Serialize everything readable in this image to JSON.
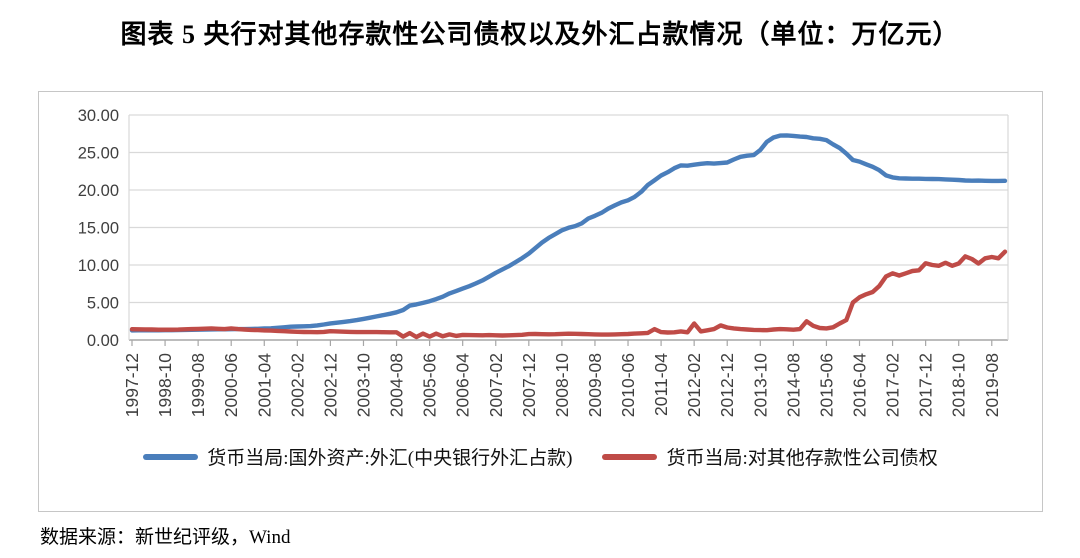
{
  "title": "图表 5  央行对其他存款性公司债权以及外汇占款情况（单位：万亿元）",
  "source": "数据来源：新世纪评级，Wind",
  "colors": {
    "series_blue": "#4a7ebb",
    "series_red": "#bf4b47",
    "gridline": "#d9d9d9",
    "axis_line": "#a6a6a6",
    "plot_border": "#d9d9d9",
    "tick_text": "#3f3f3f",
    "box_border": "#c6c6c6"
  },
  "chart_data": {
    "type": "line",
    "title": "图表 5  央行对其他存款性公司债权以及外汇占款情况（单位：万亿元）",
    "xlabel": "",
    "ylabel": "",
    "ylim": [
      0,
      30
    ],
    "grid": true,
    "legend_position": "bottom",
    "x_unit": "year-month, monthly series sampled every 2 months",
    "x_start": "1997-12",
    "x_end": "2019-12",
    "x_tick_labels": [
      "1997-12",
      "1998-10",
      "1999-08",
      "2000-06",
      "2001-04",
      "2002-02",
      "2002-12",
      "2003-10",
      "2004-08",
      "2005-06",
      "2006-04",
      "2007-02",
      "2007-12",
      "2008-10",
      "2009-08",
      "2010-06",
      "2011-04",
      "2012-02",
      "2012-12",
      "2013-10",
      "2014-08",
      "2015-06",
      "2016-04",
      "2017-02",
      "2017-12",
      "2018-10",
      "2019-08"
    ],
    "x_tick_every_n_points": 5,
    "y_tick_labels": [
      "0.00",
      "5.00",
      "10.00",
      "15.00",
      "20.00",
      "25.00",
      "30.00"
    ],
    "y_tick_values": [
      0,
      5,
      10,
      15,
      20,
      25,
      30
    ],
    "series": [
      {
        "name": "货币当局:国外资产:外汇(中央银行外汇占款)",
        "color": "#4a7ebb",
        "values": [
          1.28,
          1.29,
          1.3,
          1.3,
          1.3,
          1.31,
          1.31,
          1.32,
          1.34,
          1.36,
          1.38,
          1.4,
          1.41,
          1.42,
          1.43,
          1.44,
          1.45,
          1.46,
          1.48,
          1.5,
          1.53,
          1.56,
          1.62,
          1.7,
          1.77,
          1.8,
          1.83,
          1.86,
          1.95,
          2.07,
          2.21,
          2.31,
          2.41,
          2.52,
          2.66,
          2.81,
          2.98,
          3.14,
          3.32,
          3.5,
          3.7,
          4.0,
          4.59,
          4.74,
          4.95,
          5.18,
          5.45,
          5.77,
          6.21,
          6.52,
          6.85,
          7.17,
          7.55,
          7.95,
          8.44,
          8.96,
          9.41,
          9.85,
          10.38,
          10.92,
          11.52,
          12.25,
          12.98,
          13.62,
          14.12,
          14.63,
          14.96,
          15.19,
          15.54,
          16.2,
          16.56,
          16.96,
          17.52,
          17.94,
          18.35,
          18.63,
          19.08,
          19.76,
          20.68,
          21.3,
          21.93,
          22.37,
          22.91,
          23.28,
          23.24,
          23.37,
          23.49,
          23.58,
          23.52,
          23.59,
          23.67,
          24.07,
          24.42,
          24.58,
          24.66,
          25.33,
          26.43,
          27.0,
          27.25,
          27.28,
          27.21,
          27.12,
          27.07,
          26.9,
          26.82,
          26.65,
          26.1,
          25.59,
          24.85,
          24.0,
          23.78,
          23.43,
          23.1,
          22.64,
          21.94,
          21.68,
          21.56,
          21.53,
          21.51,
          21.51,
          21.48,
          21.47,
          21.45,
          21.41,
          21.38,
          21.33,
          21.26,
          21.24,
          21.25,
          21.23,
          21.22,
          21.22,
          21.23
        ]
      },
      {
        "name": "货币当局:对其他存款性公司债权",
        "color": "#bf4b47",
        "values": [
          1.44,
          1.42,
          1.41,
          1.4,
          1.38,
          1.38,
          1.37,
          1.39,
          1.42,
          1.45,
          1.48,
          1.51,
          1.54,
          1.49,
          1.46,
          1.55,
          1.45,
          1.4,
          1.35,
          1.32,
          1.28,
          1.25,
          1.21,
          1.17,
          1.13,
          1.1,
          1.07,
          1.05,
          1.04,
          1.08,
          1.17,
          1.14,
          1.11,
          1.08,
          1.06,
          1.05,
          1.06,
          1.05,
          1.04,
          1.03,
          1.02,
          0.45,
          0.92,
          0.4,
          0.85,
          0.45,
          0.85,
          0.5,
          0.75,
          0.55,
          0.68,
          0.66,
          0.64,
          0.63,
          0.65,
          0.62,
          0.6,
          0.62,
          0.65,
          0.7,
          0.79,
          0.8,
          0.78,
          0.76,
          0.78,
          0.81,
          0.84,
          0.82,
          0.8,
          0.78,
          0.74,
          0.72,
          0.72,
          0.74,
          0.77,
          0.8,
          0.85,
          0.9,
          0.95,
          1.45,
          1.05,
          1.0,
          1.02,
          1.15,
          1.02,
          2.2,
          1.15,
          1.3,
          1.45,
          1.95,
          1.67,
          1.55,
          1.45,
          1.4,
          1.35,
          1.32,
          1.31,
          1.4,
          1.45,
          1.42,
          1.38,
          1.45,
          2.5,
          1.9,
          1.6,
          1.55,
          1.7,
          2.2,
          2.66,
          5.0,
          5.7,
          6.1,
          6.4,
          7.2,
          8.47,
          8.9,
          8.6,
          8.9,
          9.2,
          9.3,
          10.22,
          10.0,
          9.9,
          10.3,
          9.9,
          10.2,
          11.15,
          10.8,
          10.2,
          10.9,
          11.07,
          10.9,
          11.77
        ]
      }
    ]
  }
}
